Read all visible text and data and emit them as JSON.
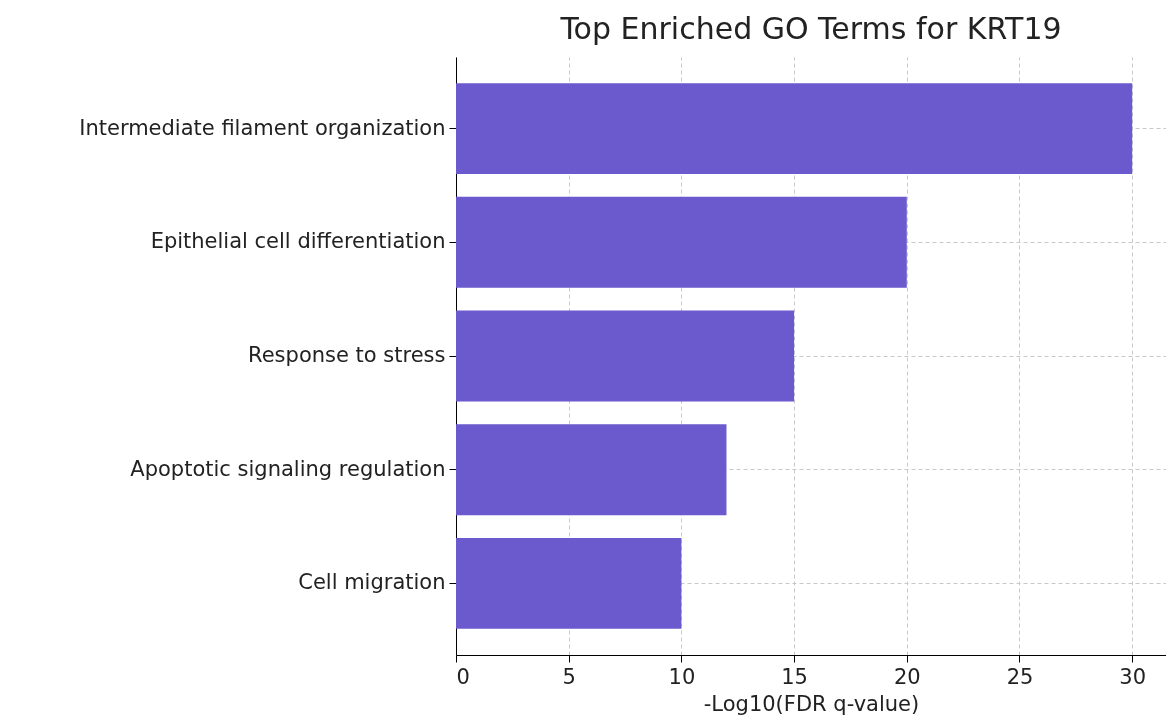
{
  "chart_data": {
    "type": "bar",
    "orientation": "horizontal",
    "title": "Top Enriched GO Terms for KRT19",
    "xlabel": "-Log10(FDR q-value)",
    "categories": [
      "Intermediate filament organization",
      "Epithelial cell differentiation",
      "Response to stress",
      "Apoptotic signaling regulation",
      "Cell migration"
    ],
    "values": [
      30,
      20,
      15,
      12,
      10
    ],
    "color": "#6a5acd",
    "xlim": [
      0,
      31.5
    ],
    "xticks": [
      0,
      5,
      10,
      15,
      20,
      25,
      30
    ],
    "grid": true
  }
}
